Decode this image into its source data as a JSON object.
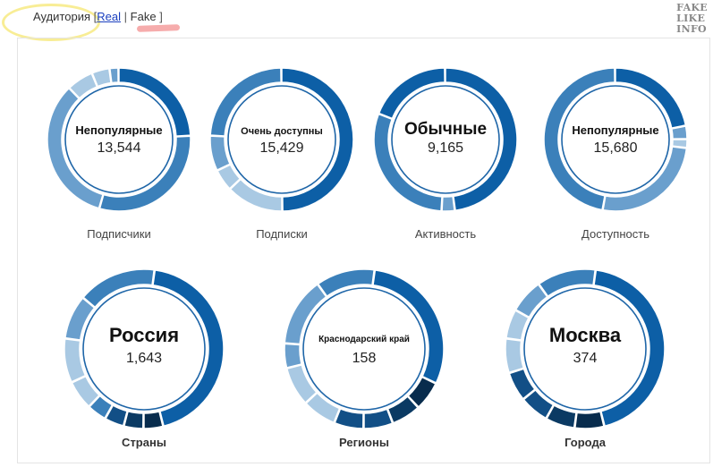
{
  "header": {
    "audience_label": "Аудитория",
    "bracket_open": "[",
    "real_link": "Real",
    "divider": "|",
    "fake_label": "Fake",
    "bracket_close": "]"
  },
  "watermark": {
    "line1": "FAKE",
    "line2": "LIKE",
    "line3": "INFO"
  },
  "colors": {
    "c1": "#0d5fa6",
    "c2": "#3b80ba",
    "c3": "#6a9fcd",
    "c4": "#a9c9e3",
    "c5": "#124f86",
    "c6": "#0b3a63",
    "c7": "#082c4d"
  },
  "chart_data": [
    {
      "type": "pie",
      "donut": true,
      "caption": "Подписчики",
      "center_label": "Непопулярные",
      "center_value": "13,544",
      "segments": [
        {
          "value": 24,
          "color": "#0d5fa6"
        },
        {
          "value": 30,
          "color": "#3b80ba"
        },
        {
          "value": 33,
          "color": "#6a9fcd"
        },
        {
          "value": 6,
          "color": "#a9c9e3"
        },
        {
          "value": 4,
          "color": "#a9c9e3"
        },
        {
          "value": 2,
          "color": "#6a9fcd"
        }
      ]
    },
    {
      "type": "pie",
      "donut": true,
      "caption": "Подписки",
      "center_label": "Очень доступны",
      "center_value": "15,429",
      "segments": [
        {
          "value": 50,
          "color": "#0d5fa6"
        },
        {
          "value": 13,
          "color": "#a9c9e3"
        },
        {
          "value": 5,
          "color": "#a9c9e3"
        },
        {
          "value": 8,
          "color": "#6a9fcd"
        },
        {
          "value": 24,
          "color": "#3b80ba"
        }
      ]
    },
    {
      "type": "pie",
      "donut": true,
      "caption": "Активность",
      "center_label": "Обычные",
      "center_value": "9,165",
      "segments": [
        {
          "value": 48,
          "color": "#0d5fa6"
        },
        {
          "value": 3,
          "color": "#6a9fcd"
        },
        {
          "value": 30,
          "color": "#3b80ba"
        },
        {
          "value": 19,
          "color": "#0d5fa6"
        }
      ]
    },
    {
      "type": "pie",
      "donut": true,
      "caption": "Доступность",
      "center_label": "Непопулярные",
      "center_value": "15,680",
      "segments": [
        {
          "value": 22,
          "color": "#0d5fa6"
        },
        {
          "value": 3,
          "color": "#6a9fcd"
        },
        {
          "value": 2,
          "color": "#a9c9e3"
        },
        {
          "value": 26,
          "color": "#6a9fcd"
        },
        {
          "value": 47,
          "color": "#3b80ba"
        }
      ]
    },
    {
      "type": "pie",
      "donut": true,
      "caption": "Страны",
      "center_label": "Россия",
      "center_value": "1,643",
      "segments": [
        {
          "value": 44,
          "color": "#0d5fa6"
        },
        {
          "value": 4,
          "color": "#082c4d"
        },
        {
          "value": 4,
          "color": "#0b3a63"
        },
        {
          "value": 4,
          "color": "#124f86"
        },
        {
          "value": 4,
          "color": "#3b80ba"
        },
        {
          "value": 6,
          "color": "#a9c9e3"
        },
        {
          "value": 9,
          "color": "#a9c9e3"
        },
        {
          "value": 9,
          "color": "#6a9fcd"
        },
        {
          "value": 16,
          "color": "#3b80ba"
        }
      ]
    },
    {
      "type": "pie",
      "donut": true,
      "caption": "Регионы",
      "center_label": "Краснодарский край",
      "center_value": "158",
      "segments": [
        {
          "value": 30,
          "color": "#0d5fa6"
        },
        {
          "value": 6,
          "color": "#082c4d"
        },
        {
          "value": 6,
          "color": "#0b3a63"
        },
        {
          "value": 6,
          "color": "#124f86"
        },
        {
          "value": 6,
          "color": "#124f86"
        },
        {
          "value": 7,
          "color": "#a9c9e3"
        },
        {
          "value": 8,
          "color": "#a9c9e3"
        },
        {
          "value": 5,
          "color": "#6a9fcd"
        },
        {
          "value": 14,
          "color": "#6a9fcd"
        },
        {
          "value": 12,
          "color": "#3b80ba"
        }
      ]
    },
    {
      "type": "pie",
      "donut": true,
      "caption": "Города",
      "center_label": "Москва",
      "center_value": "374",
      "segments": [
        {
          "value": 44,
          "color": "#0d5fa6"
        },
        {
          "value": 6,
          "color": "#082c4d"
        },
        {
          "value": 6,
          "color": "#0b3a63"
        },
        {
          "value": 6,
          "color": "#124f86"
        },
        {
          "value": 6,
          "color": "#124f86"
        },
        {
          "value": 7,
          "color": "#a9c9e3"
        },
        {
          "value": 6,
          "color": "#a9c9e3"
        },
        {
          "value": 7,
          "color": "#6a9fcd"
        },
        {
          "value": 12,
          "color": "#3b80ba"
        }
      ]
    }
  ]
}
